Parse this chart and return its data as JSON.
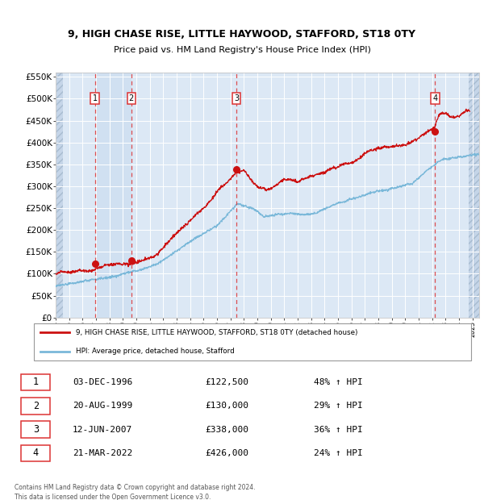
{
  "title_line1": "9, HIGH CHASE RISE, LITTLE HAYWOOD, STAFFORD, ST18 0TY",
  "title_line2": "Price paid vs. HM Land Registry's House Price Index (HPI)",
  "legend_line1": "9, HIGH CHASE RISE, LITTLE HAYWOOD, STAFFORD, ST18 0TY (detached house)",
  "legend_line2": "HPI: Average price, detached house, Stafford",
  "footer": "Contains HM Land Registry data © Crown copyright and database right 2024.\nThis data is licensed under the Open Government Licence v3.0.",
  "transactions": [
    {
      "label": "1",
      "date": "03-DEC-1996",
      "price": 122500,
      "hpi_pct": "48% ↑ HPI",
      "year": 1996.92
    },
    {
      "label": "2",
      "date": "20-AUG-1999",
      "price": 130000,
      "hpi_pct": "29% ↑ HPI",
      "year": 1999.63
    },
    {
      "label": "3",
      "date": "12-JUN-2007",
      "price": 338000,
      "hpi_pct": "36% ↑ HPI",
      "year": 2007.45
    },
    {
      "label": "4",
      "date": "21-MAR-2022",
      "price": 426000,
      "hpi_pct": "24% ↑ HPI",
      "year": 2022.22
    }
  ],
  "xmin": 1994.0,
  "xmax": 2025.5,
  "ymin": 0,
  "ymax": 560000,
  "yticks": [
    0,
    50000,
    100000,
    150000,
    200000,
    250000,
    300000,
    350000,
    400000,
    450000,
    500000,
    550000
  ],
  "ytick_labels": [
    "£0",
    "£50K",
    "£100K",
    "£150K",
    "£200K",
    "£250K",
    "£300K",
    "£350K",
    "£400K",
    "£450K",
    "£500K",
    "£550K"
  ],
  "xticks": [
    1994,
    1995,
    1996,
    1997,
    1998,
    1999,
    2000,
    2001,
    2002,
    2003,
    2004,
    2005,
    2006,
    2007,
    2008,
    2009,
    2010,
    2011,
    2012,
    2013,
    2014,
    2015,
    2016,
    2017,
    2018,
    2019,
    2020,
    2021,
    2022,
    2023,
    2024,
    2025
  ],
  "hpi_color": "#7ab8d9",
  "price_color": "#cc1111",
  "vline_color": "#dd3333",
  "plot_bg_color": "#dce8f5",
  "hatch_bg_color": "#c5d5e8",
  "grid_color": "#ffffff",
  "marker_color": "#cc1111",
  "highlight_color": "#ccddf0"
}
